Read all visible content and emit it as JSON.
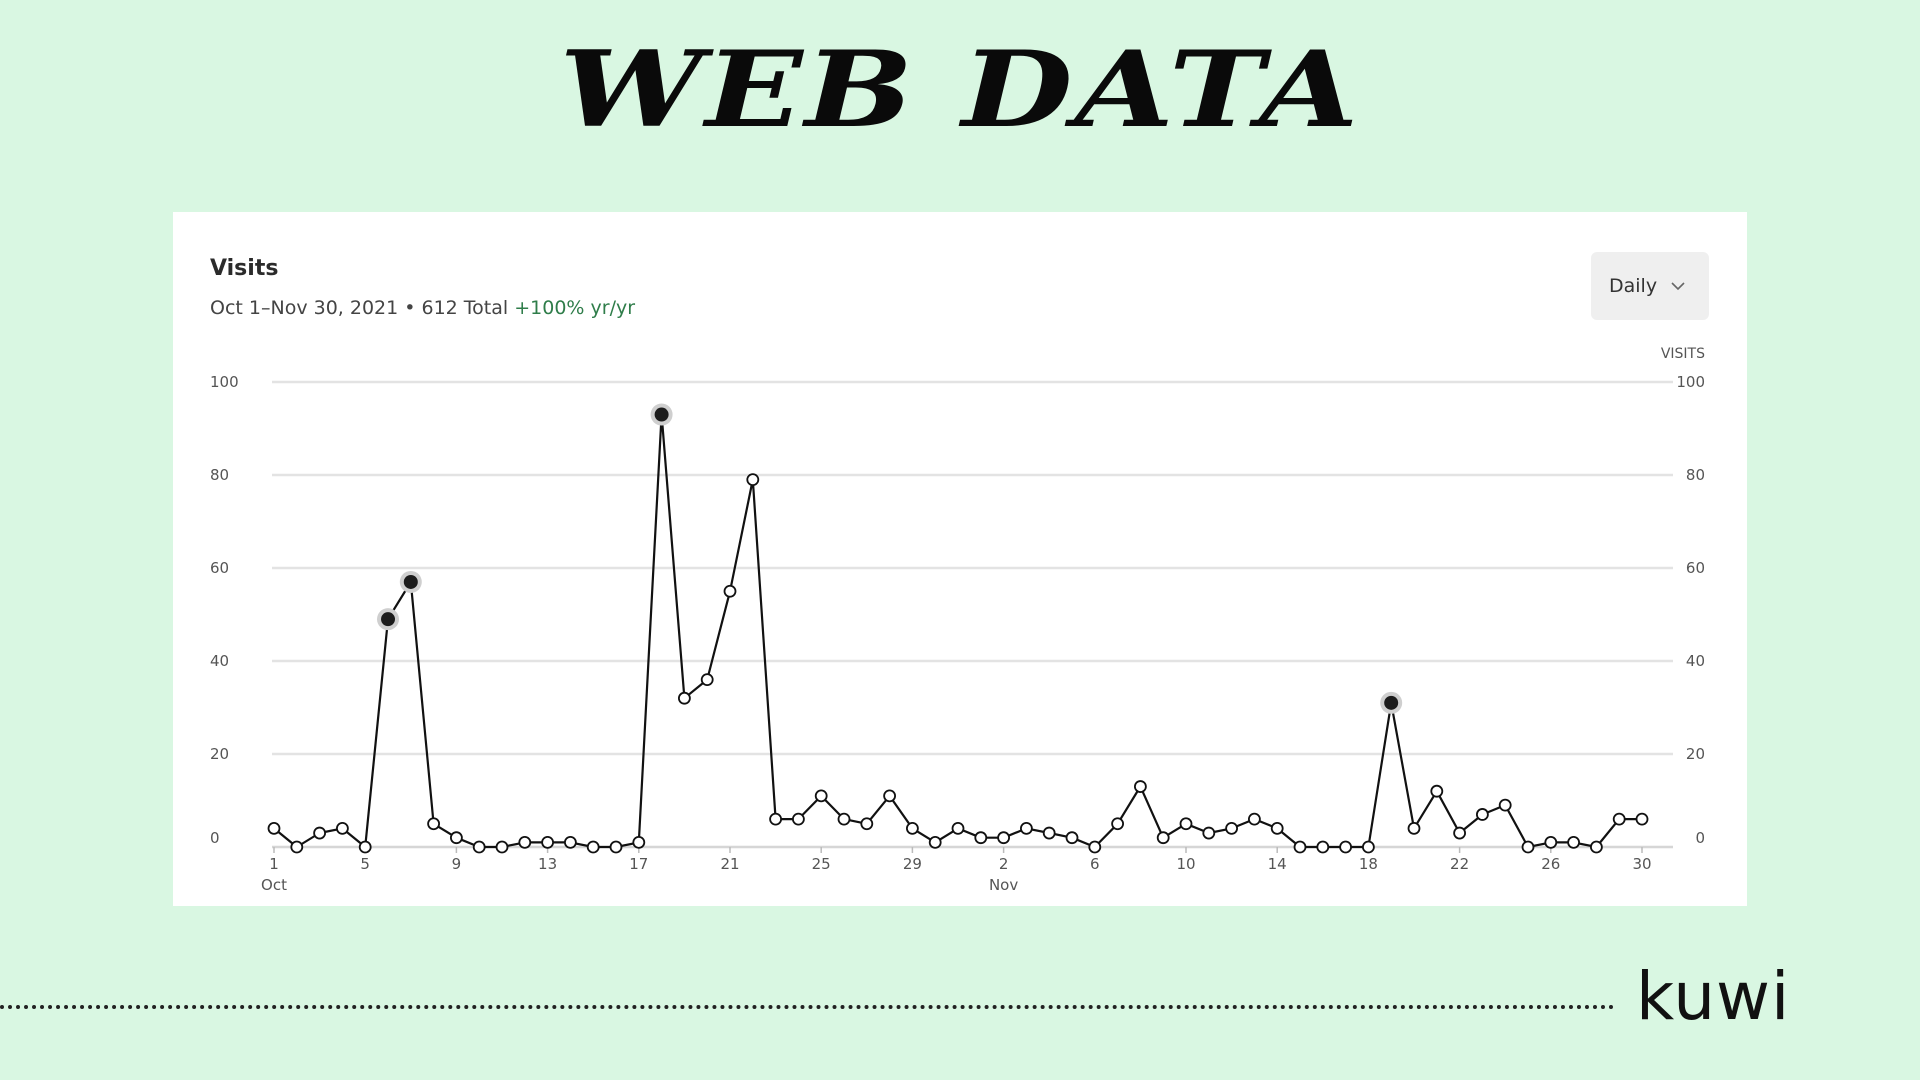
{
  "page": {
    "title": "WEB DATA",
    "brand": "kuwi"
  },
  "card": {
    "title": "Visits",
    "subtitle_main": "Oct 1–Nov 30, 2021 • 612 Total",
    "subtitle_change": "+100% yr/yr",
    "period_select": "Daily",
    "axis_unit_label": "VISITS"
  },
  "colors": {
    "background": "#d9f7e2",
    "change_positive": "#2f7d4a",
    "line": "#111111"
  },
  "chart_data": {
    "type": "line",
    "title": "Visits",
    "ylabel": "VISITS",
    "ylim": [
      0,
      100
    ],
    "y_ticks": [
      0,
      20,
      40,
      60,
      80,
      100
    ],
    "grid": true,
    "x_tick_labels": [
      "1",
      "5",
      "9",
      "13",
      "17",
      "21",
      "25",
      "29",
      "2",
      "6",
      "10",
      "14",
      "18",
      "22",
      "26",
      "30"
    ],
    "x_month_labels": [
      "Oct",
      "Nov"
    ],
    "x": [
      "Oct 1",
      "Oct 2",
      "Oct 3",
      "Oct 4",
      "Oct 5",
      "Oct 6",
      "Oct 7",
      "Oct 8",
      "Oct 9",
      "Oct 10",
      "Oct 11",
      "Oct 12",
      "Oct 13",
      "Oct 14",
      "Oct 15",
      "Oct 16",
      "Oct 17",
      "Oct 18",
      "Oct 19",
      "Oct 20",
      "Oct 21",
      "Oct 22",
      "Oct 23",
      "Oct 24",
      "Oct 25",
      "Oct 26",
      "Oct 27",
      "Oct 28",
      "Oct 29",
      "Oct 30",
      "Oct 31",
      "Nov 1",
      "Nov 2",
      "Nov 3",
      "Nov 4",
      "Nov 5",
      "Nov 6",
      "Nov 7",
      "Nov 8",
      "Nov 9",
      "Nov 10",
      "Nov 11",
      "Nov 12",
      "Nov 13",
      "Nov 14",
      "Nov 15",
      "Nov 16",
      "Nov 17",
      "Nov 18",
      "Nov 19",
      "Nov 20",
      "Nov 21",
      "Nov 22",
      "Nov 23",
      "Nov 24",
      "Nov 25",
      "Nov 26",
      "Nov 27",
      "Nov 28",
      "Nov 29",
      "Nov 30"
    ],
    "values": [
      4,
      0,
      3,
      4,
      0,
      49,
      57,
      5,
      2,
      0,
      0,
      1,
      1,
      1,
      0,
      0,
      1,
      93,
      32,
      36,
      55,
      79,
      6,
      6,
      11,
      6,
      5,
      11,
      4,
      1,
      4,
      2,
      2,
      4,
      3,
      2,
      0,
      5,
      13,
      2,
      5,
      3,
      4,
      6,
      4,
      0,
      0,
      0,
      0,
      31,
      4,
      12,
      3,
      7,
      9,
      0,
      1,
      1,
      0,
      6,
      6
    ],
    "highlighted": [
      5,
      6,
      17,
      49
    ]
  }
}
